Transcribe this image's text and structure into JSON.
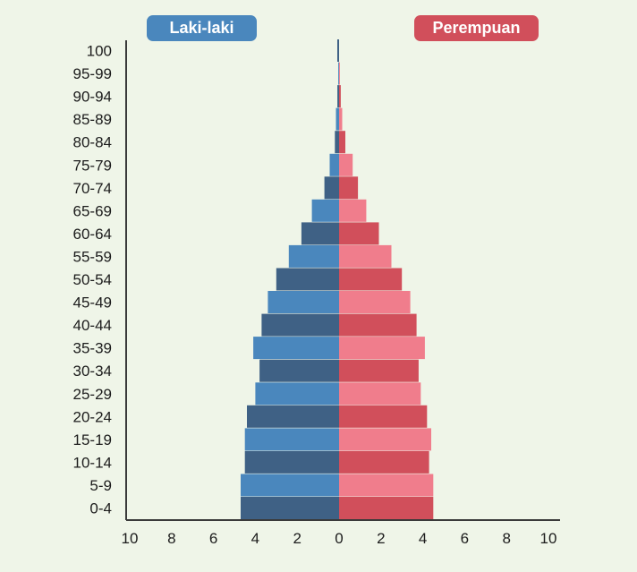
{
  "chart_data": {
    "type": "bar",
    "orientation": "horizontal",
    "title": "",
    "xlabel": "",
    "ylabel": "",
    "xlim": [
      -10,
      10
    ],
    "x_ticks": [
      "10",
      "8",
      "6",
      "4",
      "2",
      "0",
      "2",
      "4",
      "6",
      "8",
      "10"
    ],
    "categories": [
      "0-4",
      "5-9",
      "10-14",
      "15-19",
      "20-24",
      "25-29",
      "30-34",
      "35-39",
      "40-44",
      "45-49",
      "50-54",
      "55-59",
      "60-64",
      "65-69",
      "70-74",
      "75-79",
      "80-84",
      "85-89",
      "90-94",
      "95-99",
      "100"
    ],
    "series": [
      {
        "name": "Laki-laki",
        "values": [
          4.7,
          4.7,
          4.5,
          4.5,
          4.4,
          4.0,
          3.8,
          4.1,
          3.7,
          3.4,
          3.0,
          2.4,
          1.8,
          1.3,
          0.7,
          0.45,
          0.2,
          0.15,
          0.08,
          0.04,
          0.0
        ],
        "colors": [
          "#3f6185",
          "#4a87bd"
        ]
      },
      {
        "name": "Perempuan",
        "values": [
          4.5,
          4.5,
          4.3,
          4.4,
          4.2,
          3.9,
          3.8,
          4.1,
          3.7,
          3.4,
          3.0,
          2.5,
          1.9,
          1.3,
          0.9,
          0.65,
          0.3,
          0.15,
          0.08,
          0.04,
          0.0
        ],
        "colors": [
          "#d14f5b",
          "#f07d8c"
        ]
      }
    ],
    "legend": [
      {
        "label": "Laki-laki",
        "color": "#4a87bd"
      },
      {
        "label": "Perempuan",
        "color": "#d14f5b"
      }
    ],
    "grid": false
  }
}
